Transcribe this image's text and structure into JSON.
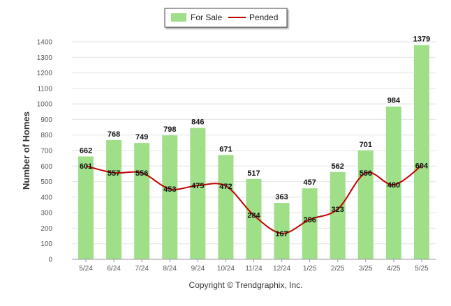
{
  "legend": {
    "for_sale_label": "For Sale",
    "pended_label": "Pended"
  },
  "copyright": "Copyright © Trendgraphix, Inc.",
  "colors": {
    "bar": "#9fdf88",
    "line": "#c00000",
    "grid": "#e3e3e3",
    "axis": "#999999"
  },
  "chart_data": {
    "type": "bar",
    "categories": [
      "5/24",
      "6/24",
      "7/24",
      "8/24",
      "9/24",
      "10/24",
      "11/24",
      "12/24",
      "1/25",
      "2/25",
      "3/25",
      "4/25",
      "5/25"
    ],
    "series": [
      {
        "name": "For Sale",
        "type": "bar",
        "values": [
          662,
          768,
          749,
          798,
          846,
          671,
          517,
          363,
          457,
          562,
          701,
          984,
          1379
        ]
      },
      {
        "name": "Pended",
        "type": "line",
        "values": [
          601,
          557,
          556,
          453,
          475,
          472,
          284,
          167,
          256,
          323,
          556,
          480,
          604
        ]
      }
    ],
    "xlabel": "",
    "ylabel": "Number of Homes",
    "ylim": [
      0,
      1400
    ],
    "yticks": [
      0,
      100,
      200,
      300,
      400,
      500,
      600,
      700,
      800,
      900,
      1000,
      1100,
      1200,
      1300,
      1400
    ],
    "grid": true,
    "legend_position": "top-center"
  }
}
